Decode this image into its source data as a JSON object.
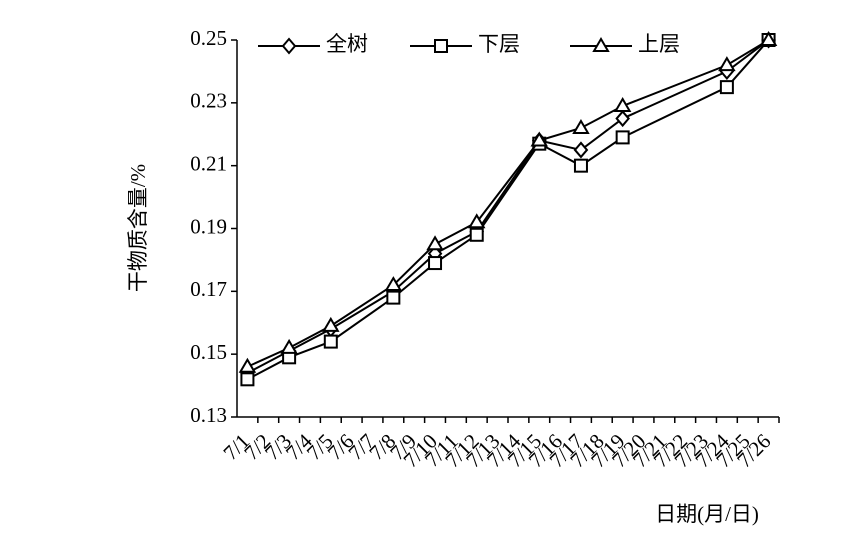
{
  "chart_data": {
    "type": "line",
    "y_label": "干物质含量/%",
    "x_label": "日期(月/日)",
    "categories": [
      "7/1",
      "7/2",
      "7/3",
      "7/4",
      "7/5",
      "7/6",
      "7/7",
      "7/8",
      "7/9",
      "7/10",
      "7/11",
      "7/12",
      "7/13",
      "7/14",
      "7/15",
      "7/16",
      "7/17",
      "7/18",
      "7/19",
      "7/20",
      "7/21",
      "7/22",
      "7/23",
      "7/24",
      "7/25",
      "7/26"
    ],
    "x": [
      "7/1",
      "7/3",
      "7/5",
      "7/8",
      "7/10",
      "7/12",
      "7/15",
      "7/17",
      "7/19",
      "7/24",
      "7/26"
    ],
    "series": [
      {
        "name": "全树",
        "marker": "diamond",
        "color": "#000000",
        "values": [
          0.144,
          0.151,
          0.158,
          0.17,
          0.182,
          0.189,
          0.218,
          0.215,
          0.225,
          0.24,
          0.25
        ]
      },
      {
        "name": "下层",
        "marker": "square",
        "color": "#000000",
        "values": [
          0.142,
          0.149,
          0.154,
          0.168,
          0.179,
          0.188,
          0.217,
          0.21,
          0.219,
          0.235,
          0.25
        ]
      },
      {
        "name": "上层",
        "marker": "triangle",
        "color": "#000000",
        "values": [
          0.146,
          0.152,
          0.159,
          0.172,
          0.185,
          0.192,
          0.218,
          0.222,
          0.229,
          0.242,
          0.25
        ]
      }
    ],
    "ylim": [
      0.13,
      0.25
    ],
    "yticks": [
      0.13,
      0.15,
      0.17,
      0.19,
      0.21,
      0.23,
      0.25
    ],
    "legend": "top"
  }
}
